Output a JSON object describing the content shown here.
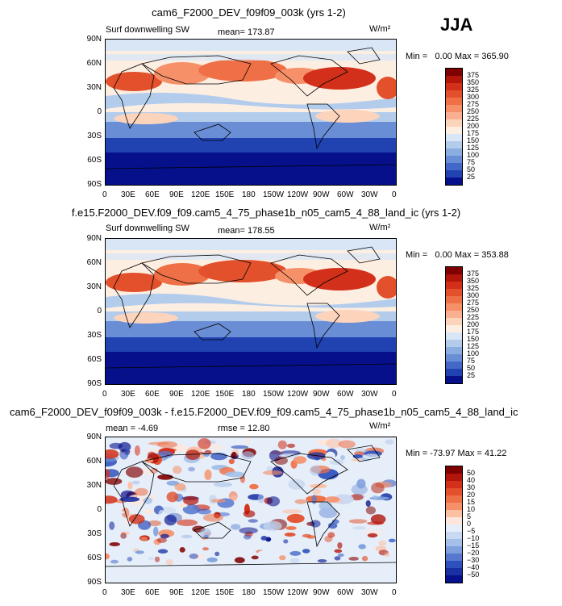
{
  "season": "JJA",
  "panels": [
    {
      "title": "cam6_F2000_DEV_f09f09_003k (yrs 1-2)",
      "variable": "Surf downwelling SW",
      "stat_label": "mean=",
      "stat_value": "173.87",
      "units": "W/m²",
      "min_label": "Min =",
      "min_value": "0.00",
      "max_label": "Max =",
      "max_value": "365.90",
      "colorbar": {
        "labels": [
          "375",
          "350",
          "325",
          "300",
          "275",
          "250",
          "225",
          "200",
          "175",
          "150",
          "125",
          "100",
          "75",
          "50",
          "25"
        ],
        "colors": [
          "#7f0000",
          "#b2150a",
          "#d2301a",
          "#e2502c",
          "#ef7046",
          "#f59068",
          "#f9b090",
          "#fcd3bb",
          "#fdeee2",
          "#d9e6f5",
          "#b3ccec",
          "#8aaee0",
          "#6a8ed5",
          "#4468c8",
          "#2143b2",
          "#05108a"
        ]
      }
    },
    {
      "title": "f.e15.F2000_DEV.f09_f09.cam5_4_75_phase1b_n05_cam5_4_88_land_ic (yrs 1-2)",
      "variable": "Surf downwelling SW",
      "stat_label": "mean=",
      "stat_value": "178.55",
      "units": "W/m²",
      "min_label": "Min =",
      "min_value": "0.00",
      "max_label": "Max =",
      "max_value": "353.88",
      "colorbar": {
        "labels": [
          "375",
          "350",
          "325",
          "300",
          "275",
          "250",
          "225",
          "200",
          "175",
          "150",
          "125",
          "100",
          "75",
          "50",
          "25"
        ],
        "colors": [
          "#7f0000",
          "#b2150a",
          "#d2301a",
          "#e2502c",
          "#ef7046",
          "#f59068",
          "#f9b090",
          "#fcd3bb",
          "#fdeee2",
          "#d9e6f5",
          "#b3ccec",
          "#8aaee0",
          "#6a8ed5",
          "#4468c8",
          "#2143b2",
          "#05108a"
        ]
      }
    },
    {
      "title": "cam6_F2000_DEV_f09f09_003k - f.e15.F2000_DEV.f09_f09.cam5_4_75_phase1b_n05_cam5_4_88_land_ic",
      "variable": "",
      "stat_label": "mean =",
      "stat_value": "-4.69",
      "stat2_label": "rmse =",
      "stat2_value": "12.80",
      "units": "W/m²",
      "min_label": "Min =",
      "min_value": "-73.97",
      "max_label": "Max =",
      "max_value": "41.22",
      "colorbar": {
        "labels": [
          "50",
          "40",
          "30",
          "20",
          "15",
          "10",
          "5",
          "0",
          "−5",
          "−10",
          "−15",
          "−20",
          "−30",
          "−40",
          "−50"
        ],
        "colors": [
          "#7f0000",
          "#b2150a",
          "#d2301a",
          "#e2502c",
          "#ef7046",
          "#f59068",
          "#fcc0a4",
          "#fde7dc",
          "#e6eef9",
          "#c9d9f1",
          "#a4bfe8",
          "#7ea0dc",
          "#5678cf",
          "#2f51bd",
          "#1930a2",
          "#05108a"
        ]
      }
    }
  ],
  "lat_ticks": [
    "90N",
    "60N",
    "30N",
    "0",
    "30S",
    "60S",
    "90S"
  ],
  "lon_ticks": [
    "0",
    "30E",
    "60E",
    "90E",
    "120E",
    "150E",
    "180",
    "150W",
    "120W",
    "90W",
    "60W",
    "30W",
    "0"
  ]
}
